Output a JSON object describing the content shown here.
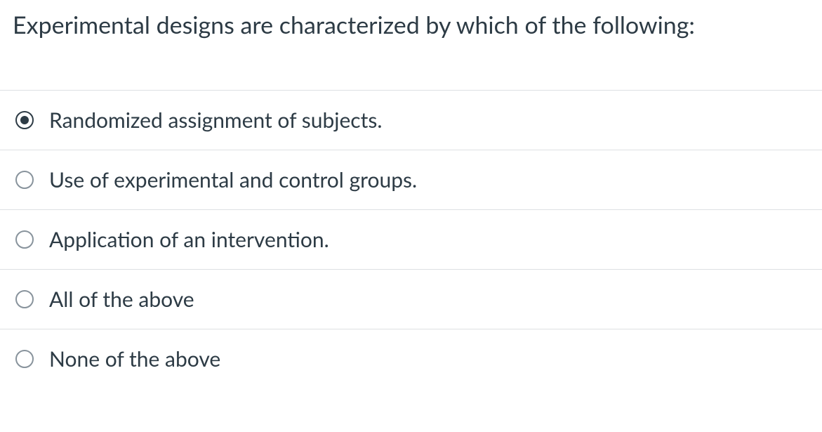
{
  "question": {
    "text": "Experimental designs are characterized by which of the following:",
    "text_color": "#2d3b45",
    "fontsize": 34,
    "options": [
      {
        "label": "Randomized assignment of subjects.",
        "selected": true
      },
      {
        "label": "Use of experimental and control groups.",
        "selected": false
      },
      {
        "label": "Application of an intervention.",
        "selected": false
      },
      {
        "label": "All of the above",
        "selected": false
      },
      {
        "label": "None of the above",
        "selected": false
      }
    ],
    "option_fontsize": 30,
    "border_color": "#dde0e3",
    "radio_selected_color": "#2d3b45",
    "radio_unselected_color": "#88939c",
    "background_color": "#ffffff"
  }
}
